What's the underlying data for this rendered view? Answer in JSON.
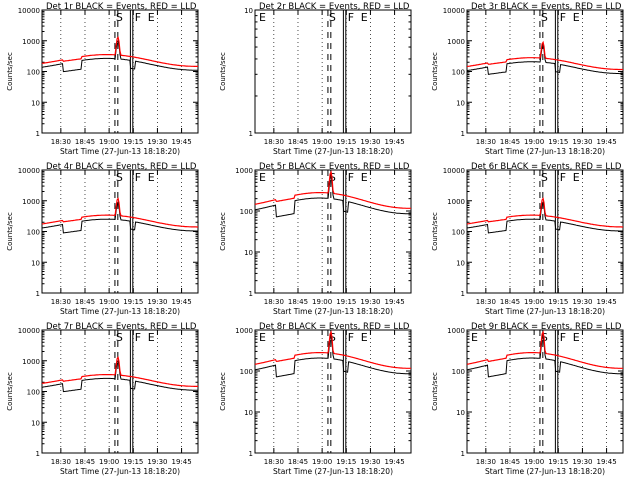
{
  "common": {
    "xlabel": "Start Time (27-Jun-13 18:18:20)",
    "ylabel": "Counts/sec",
    "x_tick_labels": [
      "18:30",
      "18:45",
      "19:00",
      "19:15",
      "19:30",
      "19:45"
    ],
    "y_tick_labels": [
      "1",
      "10",
      "100",
      "1000",
      "10000"
    ],
    "y_scale": "log",
    "colors": {
      "events": "#000000",
      "lld": "#ff0000"
    }
  },
  "chart_data": [
    {
      "type": "line",
      "title": "Det 1r BLACK = Events, RED = LLD",
      "ylim": [
        1,
        10000
      ],
      "markers": [
        "S",
        "F",
        "E"
      ],
      "series": [
        {
          "name": "Events",
          "baseline": 180,
          "dip": 110,
          "peak": 1000,
          "color": "#000000"
        },
        {
          "name": "LLD",
          "baseline": 240,
          "dip": 240,
          "peak": 1300,
          "color": "#ff0000"
        }
      ]
    },
    {
      "type": "line",
      "title": "Det 2r BLACK = Events, RED = LLD",
      "ylim": [
        1,
        10
      ],
      "markers": [
        "E",
        "S",
        "F",
        "E"
      ],
      "series": []
    },
    {
      "type": "line",
      "title": "Det 3r BLACK = Events, RED = LLD",
      "ylim": [
        1,
        10000
      ],
      "markers": [
        "S",
        "F",
        "E"
      ],
      "series": [
        {
          "name": "Events",
          "baseline": 140,
          "dip": 90,
          "peak": 700,
          "color": "#000000"
        },
        {
          "name": "LLD",
          "baseline": 190,
          "dip": 190,
          "peak": 900,
          "color": "#ff0000"
        }
      ]
    },
    {
      "type": "line",
      "title": "Det 4r BLACK = Events, RED = LLD",
      "ylim": [
        1,
        10000
      ],
      "markers": [
        "S",
        "F",
        "E"
      ],
      "series": [
        {
          "name": "Events",
          "baseline": 170,
          "dip": 100,
          "peak": 900,
          "color": "#000000"
        },
        {
          "name": "LLD",
          "baseline": 230,
          "dip": 230,
          "peak": 1200,
          "color": "#ff0000"
        }
      ]
    },
    {
      "type": "line",
      "title": "Det 5r BLACK = Events, RED = LLD",
      "ylim": [
        1,
        1000
      ],
      "markers": [
        "E",
        "S",
        "F",
        "E"
      ],
      "series": [
        {
          "name": "Events",
          "baseline": 140,
          "dip": 80,
          "peak": 700,
          "color": "#000000"
        },
        {
          "name": "LLD",
          "baseline": 190,
          "dip": 190,
          "peak": 900,
          "color": "#ff0000"
        }
      ]
    },
    {
      "type": "line",
      "title": "Det 6r BLACK = Events, RED = LLD",
      "ylim": [
        1,
        10000
      ],
      "markers": [
        "S",
        "F",
        "E"
      ],
      "series": [
        {
          "name": "Events",
          "baseline": 170,
          "dip": 100,
          "peak": 900,
          "color": "#000000"
        },
        {
          "name": "LLD",
          "baseline": 230,
          "dip": 230,
          "peak": 1200,
          "color": "#ff0000"
        }
      ]
    },
    {
      "type": "line",
      "title": "Det 7r BLACK = Events, RED = LLD",
      "ylim": [
        1,
        10000
      ],
      "markers": [
        "S",
        "F",
        "E"
      ],
      "series": [
        {
          "name": "Events",
          "baseline": 180,
          "dip": 110,
          "peak": 1000,
          "color": "#000000"
        },
        {
          "name": "LLD",
          "baseline": 240,
          "dip": 240,
          "peak": 1300,
          "color": "#ff0000"
        }
      ]
    },
    {
      "type": "line",
      "title": "Det 8r BLACK = Events, RED = LLD",
      "ylim": [
        1,
        1000
      ],
      "markers": [
        "E",
        "S",
        "F",
        "E"
      ],
      "series": [
        {
          "name": "Events",
          "baseline": 140,
          "dip": 80,
          "peak": 700,
          "color": "#000000"
        },
        {
          "name": "LLD",
          "baseline": 190,
          "dip": 190,
          "peak": 900,
          "color": "#ff0000"
        }
      ]
    },
    {
      "type": "line",
      "title": "Det 9r BLACK = Events, RED = LLD",
      "ylim": [
        1,
        1000
      ],
      "markers": [
        "E",
        "S",
        "F",
        "E"
      ],
      "series": [
        {
          "name": "Events",
          "baseline": 140,
          "dip": 80,
          "peak": 700,
          "color": "#000000"
        },
        {
          "name": "LLD",
          "baseline": 190,
          "dip": 190,
          "peak": 900,
          "color": "#ff0000"
        }
      ]
    }
  ]
}
